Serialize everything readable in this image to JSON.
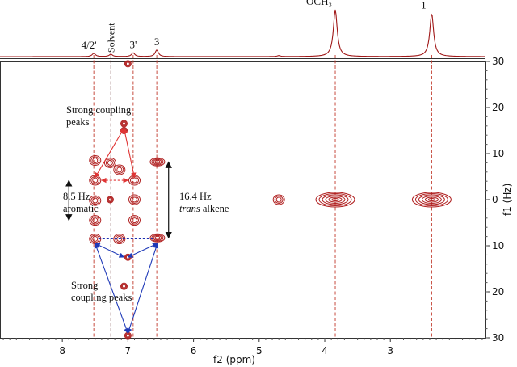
{
  "chart_data": {
    "type": "2d-nmr-jres",
    "xlabel": "f2 (ppm)",
    "ylabel": "f1 (Hz)",
    "xlim": [
      8.95,
      1.55
    ],
    "ylim": [
      -30,
      30
    ],
    "x_ticks": [
      8,
      7,
      6,
      5,
      4,
      3
    ],
    "y_ticks": [
      -30,
      -20,
      -10,
      0,
      10,
      20,
      30
    ],
    "y_tick_labels": [
      "30",
      "20",
      "10",
      "0",
      "10",
      "20",
      "30"
    ],
    "projection_peaks": [
      {
        "label": "4/2'",
        "ppm": 7.52,
        "relative_height": 0.07
      },
      {
        "label": "Solvent",
        "ppm": 7.26,
        "relative_height": 0.05,
        "vertical_label": true
      },
      {
        "label": "3'",
        "ppm": 6.92,
        "relative_height": 0.08
      },
      {
        "label": "3",
        "ppm": 6.56,
        "relative_height": 0.14
      },
      {
        "label": "",
        "ppm": 4.7,
        "relative_height": 0.02
      },
      {
        "label": "OCH₃",
        "ppm": 3.84,
        "relative_height": 1.0
      },
      {
        "label": "1",
        "ppm": 2.37,
        "relative_height": 0.92
      }
    ],
    "projection_dashed_lines_ppm": [
      7.52,
      7.26,
      6.92,
      6.56,
      3.84,
      2.37
    ],
    "cross_peaks": [
      {
        "ppm": 7.0,
        "hz": -29.5,
        "size": "s"
      },
      {
        "ppm": 7.06,
        "hz": -16.5,
        "size": "s"
      },
      {
        "ppm": 7.06,
        "hz": -15.0,
        "size": "s"
      },
      {
        "ppm": 7.5,
        "hz": -8.5,
        "size": "m"
      },
      {
        "ppm": 7.27,
        "hz": -8.0,
        "size": "m"
      },
      {
        "ppm": 7.13,
        "hz": -6.5,
        "size": "m"
      },
      {
        "ppm": 6.55,
        "hz": -8.2,
        "size": "l"
      },
      {
        "ppm": 7.5,
        "hz": -4.2,
        "size": "m"
      },
      {
        "ppm": 6.9,
        "hz": -4.2,
        "size": "m"
      },
      {
        "ppm": 7.5,
        "hz": 0.2,
        "size": "m"
      },
      {
        "ppm": 7.27,
        "hz": 0.0,
        "size": "s"
      },
      {
        "ppm": 6.9,
        "hz": 0.0,
        "size": "m"
      },
      {
        "ppm": 7.5,
        "hz": 4.5,
        "size": "m"
      },
      {
        "ppm": 6.9,
        "hz": 4.5,
        "size": "m"
      },
      {
        "ppm": 7.5,
        "hz": 8.5,
        "size": "m"
      },
      {
        "ppm": 7.13,
        "hz": 8.5,
        "size": "m"
      },
      {
        "ppm": 6.55,
        "hz": 8.3,
        "size": "l"
      },
      {
        "ppm": 7.0,
        "hz": 12.5,
        "size": "s"
      },
      {
        "ppm": 7.06,
        "hz": 18.8,
        "size": "s"
      },
      {
        "ppm": 7.0,
        "hz": 29.5,
        "size": "s"
      },
      {
        "ppm": 4.7,
        "hz": 0.0,
        "size": "m"
      },
      {
        "ppm": 3.84,
        "hz": 0.0,
        "size": "xl"
      },
      {
        "ppm": 2.37,
        "hz": 0.0,
        "size": "xl"
      }
    ],
    "annotations": {
      "top_text": [
        "Strong coupling",
        "peaks"
      ],
      "bottom_text": [
        "Strong",
        "coupling peaks"
      ],
      "aromatic_j": "8.5 Hz",
      "aromatic_label": "aromatic",
      "alkene_j": "16.4 Hz",
      "alkene_label_italic": "trans",
      "alkene_label": " alkene"
    },
    "colors": {
      "contour": "#b02020",
      "trace": "#a01818",
      "dashed_red": "#c0392b",
      "dashed_dark": "#5a1a1a",
      "dashed_blue": "#1d2fb0",
      "arrow_red": "#e03434",
      "arrow_blue": "#1f3ab8",
      "arrow_black": "#111111"
    }
  }
}
